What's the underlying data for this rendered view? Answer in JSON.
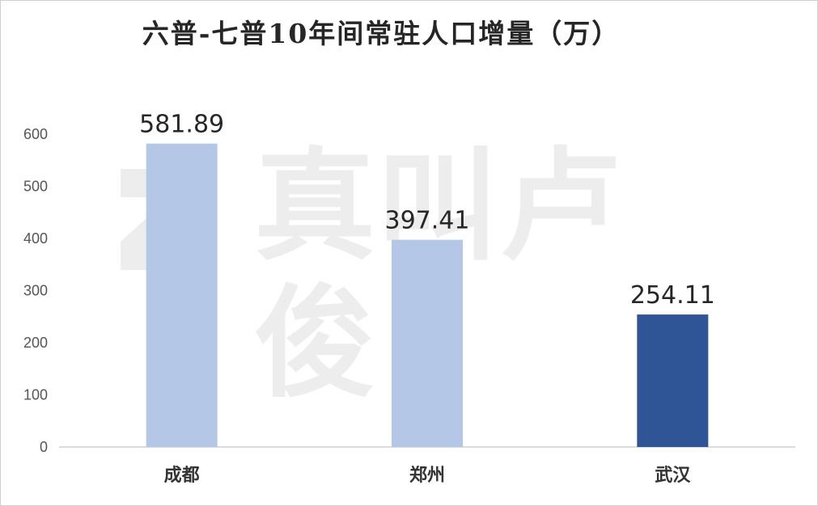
{
  "watermark": {
    "text": "真叫卢俊",
    "color": "#ededed"
  },
  "chart_data": {
    "type": "bar",
    "title": "六普-七普10年间常驻人口增量（万）",
    "xlabel": "",
    "ylabel": "",
    "categories": [
      "成都",
      "郑州",
      "武汉"
    ],
    "values": [
      581.89,
      397.41,
      254.11
    ],
    "data_labels": [
      "581.89",
      "397.41",
      "254.11"
    ],
    "colors": [
      "#b4c7e7",
      "#b4c7e7",
      "#2f5597"
    ],
    "ylim": [
      0,
      600
    ],
    "yticks": [
      0,
      100,
      200,
      300,
      400,
      500,
      600
    ],
    "grid": false,
    "legend": "none"
  }
}
